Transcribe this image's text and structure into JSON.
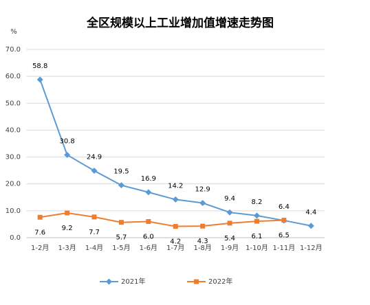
{
  "chart_data": {
    "type": "line",
    "title": "全区规模以上工业增加值增速走势图",
    "ylabel": "%",
    "categories": [
      "1-2月",
      "1-3月",
      "1-4月",
      "1-5月",
      "1-6月",
      "1-7月",
      "1-8月",
      "1-9月",
      "1-10月",
      "1-11月",
      "1-12月"
    ],
    "series": [
      {
        "name": "2021年",
        "color": "#5b9bd5",
        "marker": "diamond",
        "values": [
          58.8,
          30.8,
          24.9,
          19.5,
          16.9,
          14.2,
          12.9,
          9.4,
          8.2,
          6.4,
          4.4
        ],
        "value_labels": [
          "58.8",
          "30.8",
          "24.9",
          "19.5",
          "16.9",
          "14.2",
          "12.9",
          "9.4",
          "8.2",
          "6.4",
          "4.4"
        ],
        "label_position": "above"
      },
      {
        "name": "2022年",
        "color": "#ed7d31",
        "marker": "square",
        "values": [
          7.6,
          9.2,
          7.7,
          5.7,
          6.0,
          4.2,
          4.3,
          5.4,
          6.1,
          6.5,
          null
        ],
        "value_labels": [
          "7.6",
          "9.2",
          "7.7",
          "5.7",
          "6.0",
          "4.2",
          "4.3",
          "5.4",
          "6.1",
          "6.5",
          null
        ],
        "label_position": "below"
      }
    ],
    "ylim": [
      0,
      70
    ],
    "yticks": [
      {
        "value": 0,
        "label": "0.0"
      },
      {
        "value": 10,
        "label": "10.0"
      },
      {
        "value": 20,
        "label": "20.0"
      },
      {
        "value": 30,
        "label": "30.0"
      },
      {
        "value": 40,
        "label": "40.0"
      },
      {
        "value": 50,
        "label": "50.0"
      },
      {
        "value": 60,
        "label": "60.0"
      },
      {
        "value": 70,
        "label": "70.0"
      }
    ],
    "grid": true,
    "legend": "bottom"
  }
}
